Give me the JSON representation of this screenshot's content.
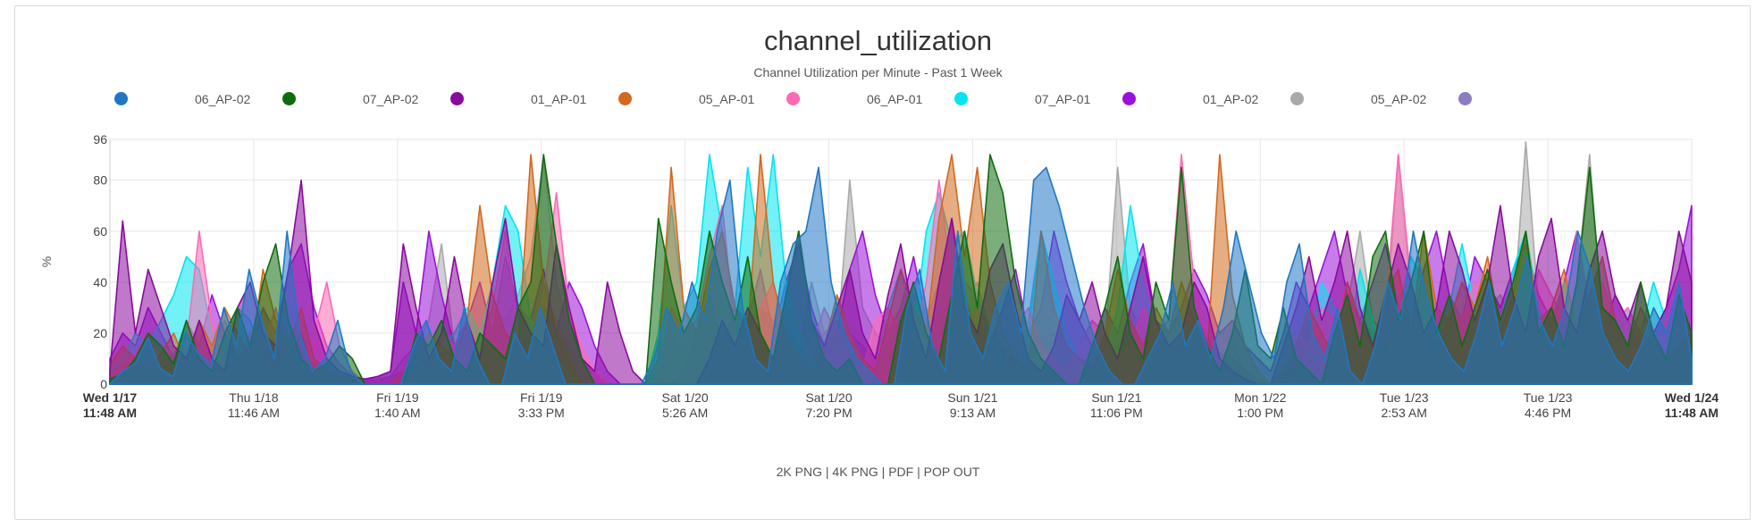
{
  "chart_data": {
    "type": "area",
    "title": "channel_utilization",
    "subtitle": "Channel Utilization per Minute - Past 1 Week",
    "ylabel": "%",
    "ylim": [
      0,
      96
    ],
    "y_ticks": [
      "0",
      "20",
      "40",
      "60",
      "80",
      "96"
    ],
    "x_ticks": [
      {
        "line1": "Wed 1/17",
        "line2": "11:48 AM",
        "bold": true
      },
      {
        "line1": "Thu 1/18",
        "line2": "11:46 AM",
        "bold": false
      },
      {
        "line1": "Fri 1/19",
        "line2": "1:40 AM",
        "bold": false
      },
      {
        "line1": "Fri 1/19",
        "line2": "3:33 PM",
        "bold": false
      },
      {
        "line1": "Sat 1/20",
        "line2": "5:26 AM",
        "bold": false
      },
      {
        "line1": "Sat 1/20",
        "line2": "7:20 PM",
        "bold": false
      },
      {
        "line1": "Sun 1/21",
        "line2": "9:13 AM",
        "bold": false
      },
      {
        "line1": "Sun 1/21",
        "line2": "11:06 PM",
        "bold": false
      },
      {
        "line1": "Mon 1/22",
        "line2": "1:00 PM",
        "bold": false
      },
      {
        "line1": "Tue 1/23",
        "line2": "2:53 AM",
        "bold": false
      },
      {
        "line1": "Tue 1/23",
        "line2": "4:46 PM",
        "bold": false
      },
      {
        "line1": "Wed 1/24",
        "line2": "11:48 AM",
        "bold": true
      }
    ],
    "legend_position": "top",
    "grid": true,
    "series": [
      {
        "name": "",
        "color": "#1f77c4",
        "values": [
          0,
          5,
          8,
          18,
          6,
          3,
          20,
          12,
          8,
          30,
          15,
          45,
          25,
          10,
          60,
          20,
          5,
          10,
          25,
          5,
          0,
          0,
          0,
          0,
          15,
          25,
          10,
          5,
          30,
          10,
          0,
          0,
          20,
          10,
          30,
          15,
          0,
          0,
          0,
          0,
          0,
          0,
          0,
          10,
          30,
          20,
          40,
          25,
          60,
          80,
          30,
          10,
          5,
          40,
          55,
          60,
          85,
          40,
          20,
          10,
          5,
          0,
          0,
          30,
          45,
          15,
          5,
          60,
          20,
          10,
          30,
          40,
          20,
          80,
          85,
          70,
          50,
          30,
          15,
          5,
          0,
          0,
          10,
          20,
          40,
          15,
          25,
          10,
          30,
          60,
          40,
          20,
          10,
          40,
          55,
          20,
          10,
          30,
          5,
          0,
          15,
          40,
          25,
          60,
          35,
          20,
          10,
          5,
          20,
          40,
          15,
          30,
          50,
          25,
          15,
          30,
          60,
          45,
          20,
          10,
          5,
          15,
          30,
          20,
          40,
          10
        ]
      },
      {
        "name": "06_AP-02",
        "color": "#0f6b0f",
        "values": [
          2,
          4,
          10,
          20,
          15,
          8,
          25,
          10,
          5,
          20,
          30,
          15,
          40,
          55,
          25,
          10,
          5,
          8,
          15,
          10,
          0,
          0,
          0,
          0,
          20,
          15,
          25,
          10,
          5,
          20,
          15,
          10,
          30,
          40,
          90,
          55,
          25,
          10,
          0,
          0,
          0,
          0,
          0,
          65,
          40,
          20,
          30,
          60,
          40,
          25,
          50,
          20,
          10,
          35,
          60,
          25,
          10,
          5,
          10,
          0,
          0,
          0,
          25,
          40,
          20,
          10,
          35,
          60,
          30,
          90,
          75,
          40,
          20,
          10,
          5,
          0,
          0,
          15,
          30,
          50,
          20,
          10,
          40,
          25,
          85,
          30,
          15,
          5,
          20,
          45,
          15,
          10,
          30,
          10,
          5,
          0,
          20,
          35,
          15,
          50,
          60,
          25,
          40,
          60,
          20,
          35,
          15,
          30,
          45,
          25,
          40,
          60,
          20,
          30,
          15,
          40,
          85,
          30,
          25,
          15,
          40,
          20,
          10,
          35,
          20
        ]
      },
      {
        "name": "07_AP-02",
        "color": "#8a0a9e",
        "values": [
          5,
          64,
          20,
          45,
          30,
          15,
          10,
          25,
          10,
          5,
          30,
          40,
          20,
          15,
          45,
          80,
          25,
          10,
          5,
          3,
          2,
          3,
          5,
          55,
          30,
          10,
          20,
          50,
          25,
          10,
          40,
          65,
          30,
          20,
          15,
          55,
          30,
          10,
          5,
          40,
          20,
          5,
          0,
          0,
          0,
          0,
          0,
          10,
          25,
          15,
          30,
          20,
          10,
          35,
          60,
          25,
          15,
          30,
          45,
          20,
          10,
          35,
          55,
          25,
          10,
          40,
          65,
          30,
          20,
          45,
          55,
          30,
          10,
          5,
          15,
          35,
          25,
          40,
          20,
          10,
          30,
          50,
          25,
          15,
          20,
          40,
          30,
          10,
          5,
          2,
          0,
          0,
          15,
          30,
          50,
          25,
          40,
          60,
          30,
          15,
          35,
          55,
          40,
          20,
          30,
          60,
          45,
          25,
          40,
          70,
          35,
          20,
          50,
          65,
          30,
          20,
          45,
          60,
          35,
          25,
          40,
          20,
          30,
          60,
          40
        ]
      },
      {
        "name": "01_AP-01",
        "color": "#d2691e",
        "values": [
          8,
          15,
          10,
          5,
          12,
          20,
          8,
          25,
          15,
          30,
          20,
          10,
          45,
          25,
          15,
          30,
          10,
          5,
          3,
          2,
          0,
          0,
          0,
          5,
          10,
          20,
          15,
          10,
          25,
          70,
          35,
          20,
          15,
          90,
          40,
          20,
          10,
          0,
          0,
          0,
          0,
          0,
          0,
          10,
          85,
          30,
          20,
          45,
          60,
          30,
          20,
          90,
          40,
          20,
          10,
          5,
          15,
          35,
          20,
          10,
          5,
          25,
          45,
          30,
          20,
          65,
          90,
          50,
          85,
          40,
          20,
          10,
          5,
          60,
          30,
          15,
          10,
          5,
          20,
          45,
          25,
          15,
          30,
          20,
          40,
          25,
          10,
          90,
          35,
          15,
          5,
          0,
          5,
          15,
          30,
          20,
          10,
          40,
          25,
          15,
          35,
          45,
          20,
          60,
          30,
          25,
          40,
          30,
          50,
          20,
          35,
          60,
          25,
          30,
          45,
          20,
          35,
          50,
          25,
          15,
          30,
          20,
          10,
          15,
          20
        ]
      },
      {
        "name": "05_AP-01",
        "color": "#ff69b4",
        "values": [
          3,
          8,
          12,
          20,
          10,
          5,
          15,
          60,
          25,
          10,
          5,
          20,
          15,
          30,
          10,
          5,
          20,
          40,
          15,
          5,
          0,
          0,
          0,
          0,
          5,
          10,
          20,
          15,
          25,
          10,
          30,
          60,
          20,
          10,
          35,
          75,
          30,
          15,
          5,
          0,
          0,
          0,
          0,
          0,
          30,
          20,
          25,
          50,
          70,
          20,
          15,
          30,
          40,
          20,
          10,
          15,
          30,
          20,
          10,
          5,
          25,
          30,
          20,
          15,
          40,
          80,
          40,
          20,
          30,
          10,
          5,
          20,
          30,
          15,
          10,
          5,
          15,
          25,
          20,
          10,
          15,
          30,
          20,
          25,
          90,
          40,
          20,
          10,
          5,
          0,
          0,
          0,
          10,
          20,
          15,
          30,
          25,
          40,
          20,
          15,
          30,
          90,
          40,
          20,
          10,
          30,
          25,
          40,
          35,
          25,
          40,
          20,
          45,
          35,
          25,
          60,
          30,
          40,
          25,
          30,
          20,
          15,
          25,
          20,
          10
        ]
      },
      {
        "name": "06_AP-01",
        "color": "#00e5ee",
        "values": [
          5,
          10,
          20,
          15,
          25,
          35,
          50,
          45,
          20,
          15,
          30,
          25,
          10,
          5,
          15,
          10,
          5,
          10,
          2,
          0,
          0,
          0,
          0,
          0,
          10,
          5,
          15,
          20,
          30,
          20,
          40,
          70,
          60,
          25,
          15,
          10,
          5,
          0,
          0,
          0,
          0,
          0,
          0,
          20,
          70,
          30,
          40,
          90,
          60,
          30,
          85,
          50,
          90,
          40,
          20,
          10,
          5,
          35,
          20,
          10,
          5,
          30,
          45,
          20,
          60,
          75,
          55,
          60,
          35,
          20,
          10,
          5,
          25,
          60,
          40,
          20,
          10,
          5,
          10,
          30,
          70,
          40,
          20,
          15,
          10,
          25,
          15,
          10,
          5,
          0,
          0,
          0,
          0,
          5,
          15,
          40,
          30,
          15,
          45,
          25,
          10,
          30,
          50,
          40,
          20,
          30,
          55,
          30,
          20,
          25,
          45,
          60,
          30,
          25,
          40,
          20,
          35,
          50,
          25,
          30,
          20,
          40,
          25,
          15,
          10
        ]
      },
      {
        "name": "07_AP-01",
        "color": "#9b11d8",
        "values": [
          10,
          20,
          15,
          30,
          20,
          10,
          25,
          15,
          35,
          20,
          10,
          15,
          30,
          20,
          45,
          55,
          30,
          15,
          8,
          3,
          2,
          3,
          5,
          40,
          20,
          60,
          35,
          15,
          25,
          40,
          20,
          50,
          30,
          25,
          45,
          20,
          40,
          30,
          15,
          5,
          0,
          0,
          0,
          0,
          0,
          5,
          20,
          35,
          15,
          30,
          25,
          45,
          20,
          40,
          55,
          30,
          15,
          20,
          45,
          60,
          35,
          20,
          30,
          50,
          25,
          40,
          65,
          35,
          20,
          15,
          30,
          45,
          20,
          30,
          60,
          40,
          25,
          15,
          30,
          20,
          40,
          55,
          25,
          20,
          30,
          45,
          35,
          20,
          25,
          15,
          10,
          5,
          20,
          40,
          30,
          45,
          60,
          35,
          25,
          40,
          55,
          30,
          20,
          45,
          60,
          35,
          25,
          50,
          40,
          30,
          45,
          55,
          35,
          25,
          40,
          60,
          30,
          20,
          35,
          25,
          15,
          20,
          30,
          45,
          70
        ]
      },
      {
        "name": "01_AP-02",
        "color": "#a9a9a9",
        "values": [
          5,
          8,
          10,
          15,
          8,
          12,
          20,
          10,
          15,
          25,
          10,
          8,
          30,
          15,
          10,
          20,
          5,
          8,
          3,
          2,
          2,
          2,
          3,
          10,
          15,
          25,
          55,
          15,
          10,
          20,
          30,
          25,
          35,
          50,
          90,
          40,
          20,
          10,
          5,
          0,
          0,
          0,
          0,
          15,
          20,
          10,
          15,
          30,
          20,
          15,
          25,
          30,
          20,
          15,
          10,
          40,
          20,
          15,
          80,
          30,
          20,
          15,
          25,
          35,
          20,
          15,
          30,
          25,
          40,
          20,
          15,
          10,
          20,
          60,
          25,
          15,
          10,
          5,
          15,
          85,
          30,
          20,
          10,
          5,
          15,
          25,
          20,
          10,
          15,
          5,
          2,
          0,
          5,
          10,
          25,
          15,
          20,
          30,
          60,
          25,
          20,
          90,
          35,
          20,
          15,
          25,
          40,
          20,
          30,
          35,
          25,
          95,
          30,
          20,
          15,
          40,
          90,
          25,
          20,
          10,
          15,
          10,
          5,
          8,
          10
        ]
      },
      {
        "name": "05_AP-02",
        "color": "#8e7cc3",
        "values": [
          3,
          5,
          8,
          10,
          6,
          8,
          12,
          10,
          8,
          15,
          10,
          8,
          12,
          15,
          10,
          12,
          8,
          5,
          3,
          2,
          2,
          2,
          3,
          5,
          8,
          10,
          12,
          15,
          10,
          12,
          15,
          18,
          15,
          20,
          30,
          25,
          15,
          10,
          5,
          0,
          0,
          0,
          0,
          5,
          10,
          15,
          20,
          25,
          20,
          15,
          20,
          30,
          25,
          20,
          15,
          12,
          20,
          25,
          20,
          15,
          10,
          15,
          20,
          25,
          30,
          25,
          35,
          40,
          35,
          20,
          15,
          10,
          12,
          18,
          20,
          15,
          10,
          8,
          10,
          15,
          20,
          18,
          12,
          10,
          15,
          20,
          18,
          12,
          10,
          5,
          2,
          0,
          3,
          8,
          12,
          15,
          18,
          20,
          25,
          20,
          15,
          25,
          30,
          20,
          15,
          20,
          25,
          20,
          15,
          22,
          25,
          30,
          22,
          18,
          20,
          25,
          30,
          20,
          18,
          15,
          20,
          15,
          10,
          12,
          15
        ]
      }
    ]
  },
  "exports": {
    "png2k": "2K PNG",
    "png4k": "4K PNG",
    "pdf": "PDF",
    "popout": "POP OUT",
    "sep": " | "
  }
}
